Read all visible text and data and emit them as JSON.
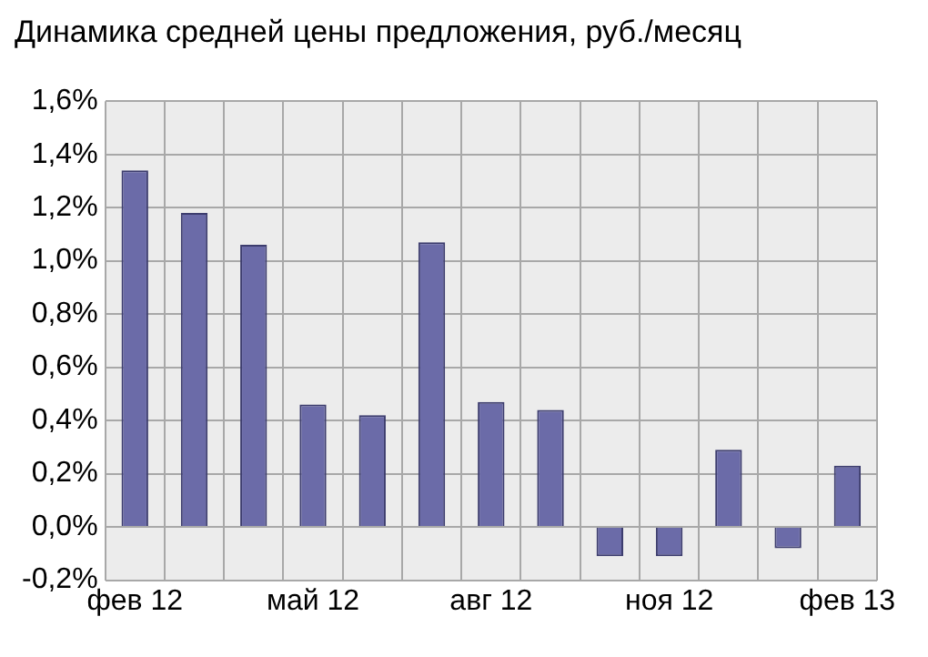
{
  "chart_data": {
    "type": "bar",
    "title": "Динамика средней цены предложения, руб./месяц",
    "categories": [
      "фев 12",
      null,
      null,
      "май 12",
      null,
      null,
      "авг 12",
      null,
      null,
      "ноя 12",
      null,
      null,
      "фев 13"
    ],
    "values": [
      1.34,
      1.18,
      1.06,
      0.46,
      0.42,
      1.07,
      0.47,
      0.44,
      -0.11,
      -0.11,
      0.29,
      -0.08,
      0.23
    ],
    "color": "#6b6ba8",
    "ylim": [
      -0.2,
      1.6
    ],
    "yticks": [
      {
        "value": -0.2,
        "label": "-0,2%"
      },
      {
        "value": 0,
        "label": "0,0%"
      },
      {
        "value": 0.2,
        "label": "0,2%"
      },
      {
        "value": 0.4,
        "label": "0,4%"
      },
      {
        "value": 0.6,
        "label": "0,6%"
      },
      {
        "value": 0.8,
        "label": "0,8%"
      },
      {
        "value": 1,
        "label": "1,0%"
      },
      {
        "value": 1.2,
        "label": "1,2%"
      },
      {
        "value": 1.4,
        "label": "1,4%"
      },
      {
        "value": 1.6,
        "label": "1,6%"
      }
    ],
    "grid": true
  }
}
